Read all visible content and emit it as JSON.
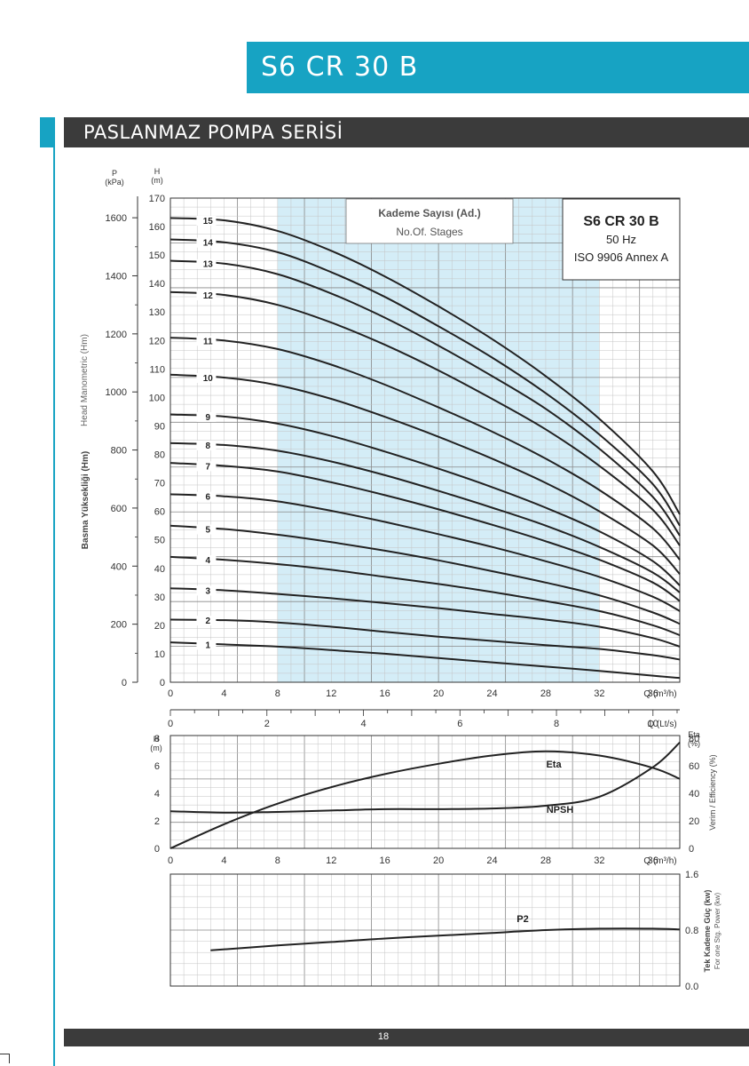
{
  "header": {
    "title": "S6 CR 30 B",
    "section": "PASLANMAZ POMPA SERİSİ"
  },
  "footer": {
    "page_number": "18"
  },
  "colors": {
    "accent": "#17a3c3",
    "dark_bar": "#3b3b3b",
    "band": "#d4edf7",
    "curve": "#222222"
  },
  "chart_data": [
    {
      "type": "line",
      "name_box": {
        "title": "S6 CR 30 B",
        "line2": "50 Hz",
        "line3": "ISO 9906 Annex A"
      },
      "legend_box": {
        "line1": "Kademe Sayısı (Ad.)",
        "line2": "No.Of. Stages"
      },
      "x_unit_label": "Q (m³/h)",
      "x_ticks": [
        0,
        4,
        8,
        12,
        16,
        20,
        24,
        28,
        32,
        36
      ],
      "x2_unit_label": "Q (Lt/s)",
      "x2_ticks": [
        0,
        2,
        4,
        6,
        8,
        10
      ],
      "y_unit": "H",
      "y_unit2": "(m)",
      "y_ticks": [
        0,
        10,
        20,
        30,
        40,
        50,
        60,
        70,
        80,
        90,
        100,
        110,
        120,
        130,
        140,
        150,
        160,
        170
      ],
      "p_unit": "P",
      "p_unit2": "(kPa)",
      "p_ticks": [
        0,
        200,
        400,
        600,
        800,
        1000,
        1200,
        1400,
        1600
      ],
      "ylabel_left1": "Head Manometric (Hm)",
      "ylabel_left2": "Basma Yüksekliği (Hm)",
      "xlim": [
        0,
        38
      ],
      "ylim": [
        0,
        170
      ],
      "highlight_range": [
        8,
        32
      ],
      "grid": true,
      "series": [
        {
          "name": "1",
          "x": [
            0,
            4,
            8,
            12,
            16,
            20,
            24,
            28,
            32,
            36,
            38
          ],
          "y": [
            14,
            13.3,
            12.5,
            11.3,
            10,
            8.5,
            7,
            5.5,
            4,
            2.3,
            1.5
          ]
        },
        {
          "name": "2",
          "x": [
            0,
            4,
            8,
            12,
            16,
            20,
            24,
            28,
            32,
            36,
            38
          ],
          "y": [
            22,
            21.8,
            21,
            19.5,
            17.7,
            16,
            14.5,
            13,
            11.7,
            9.5,
            8
          ]
        },
        {
          "name": "3",
          "x": [
            0,
            4,
            8,
            12,
            16,
            20,
            24,
            28,
            32,
            36,
            38
          ],
          "y": [
            33,
            32.3,
            31,
            29.5,
            27.8,
            26,
            24,
            22,
            19.5,
            15.5,
            12.5
          ]
        },
        {
          "name": "4",
          "x": [
            0,
            4,
            8,
            12,
            16,
            20,
            24,
            28,
            32,
            36,
            38
          ],
          "y": [
            44,
            43,
            41.5,
            39.5,
            37,
            34.5,
            31.7,
            28.5,
            25,
            20,
            16.5
          ]
        },
        {
          "name": "5",
          "x": [
            0,
            4,
            8,
            12,
            16,
            20,
            24,
            28,
            32,
            36,
            38
          ],
          "y": [
            55,
            53.8,
            51.8,
            49.2,
            46.2,
            42.8,
            39,
            35,
            30.5,
            24.5,
            20.5
          ]
        },
        {
          "name": "6",
          "x": [
            0,
            4,
            8,
            12,
            16,
            20,
            24,
            28,
            32,
            36,
            38
          ],
          "y": [
            66,
            65.3,
            63.5,
            60.2,
            56.3,
            52,
            47.5,
            42.5,
            37,
            30,
            25
          ]
        },
        {
          "name": "7",
          "x": [
            0,
            4,
            8,
            12,
            16,
            20,
            24,
            28,
            32,
            36,
            38
          ],
          "y": [
            77,
            76,
            74,
            70.2,
            65.7,
            60.7,
            55.3,
            49.5,
            43,
            35,
            28.5
          ]
        },
        {
          "name": "8",
          "x": [
            0,
            4,
            8,
            12,
            16,
            20,
            24,
            28,
            32,
            36,
            38
          ],
          "y": [
            84,
            83.3,
            81.3,
            77.5,
            72.7,
            67.2,
            61.3,
            55,
            47.5,
            38.5,
            31.5
          ]
        },
        {
          "name": "9",
          "x": [
            0,
            4,
            8,
            12,
            16,
            20,
            24,
            28,
            32,
            36,
            38
          ],
          "y": [
            94,
            93.3,
            90.8,
            86.5,
            81,
            75,
            68.5,
            61.3,
            53,
            42.5,
            34
          ]
        },
        {
          "name": "10",
          "x": [
            0,
            4,
            8,
            12,
            16,
            20,
            24,
            28,
            32,
            36,
            38
          ],
          "y": [
            108,
            107,
            104.3,
            99.5,
            93.2,
            86.2,
            78.5,
            70,
            60,
            48,
            38
          ]
        },
        {
          "name": "11",
          "x": [
            0,
            4,
            8,
            12,
            16,
            20,
            24,
            28,
            32,
            36,
            38
          ],
          "y": [
            121,
            120,
            117,
            111.5,
            104.5,
            96.5,
            88,
            78.5,
            67.5,
            54,
            43
          ]
        },
        {
          "name": "12",
          "x": [
            0,
            4,
            8,
            12,
            16,
            20,
            24,
            28,
            32,
            36,
            38
          ],
          "y": [
            137,
            136,
            132.5,
            126.3,
            118.5,
            109.5,
            99.5,
            88.8,
            76,
            60.5,
            48
          ]
        },
        {
          "name": "13",
          "x": [
            0,
            4,
            8,
            12,
            16,
            20,
            24,
            28,
            32,
            36,
            38
          ],
          "y": [
            148,
            147,
            143.3,
            136.5,
            128,
            118.2,
            107.5,
            96,
            82,
            65,
            51.5
          ]
        },
        {
          "name": "14",
          "x": [
            0,
            4,
            8,
            12,
            16,
            20,
            24,
            28,
            32,
            36,
            38
          ],
          "y": [
            155.5,
            154.5,
            151,
            144,
            135.3,
            125,
            114,
            101.5,
            87,
            69.5,
            55
          ]
        },
        {
          "name": "15",
          "x": [
            0,
            4,
            8,
            12,
            16,
            20,
            24,
            28,
            32,
            36,
            38
          ],
          "y": [
            163,
            162.2,
            158.5,
            151.5,
            142.5,
            132,
            120.5,
            107.5,
            92.5,
            74,
            59
          ]
        }
      ]
    },
    {
      "type": "line",
      "x_unit_label": "Q (m³/h)",
      "x_ticks": [
        0,
        4,
        8,
        12,
        16,
        20,
        24,
        28,
        32,
        36
      ],
      "xlim": [
        0,
        38
      ],
      "y_unit": "H",
      "y_unit2": "(m)",
      "y_ticks": [
        0,
        2,
        4,
        6,
        8
      ],
      "ylim": [
        0,
        8.2
      ],
      "y2_unit": "Eta",
      "y2_unit2": "(%)",
      "y2_ticks": [
        0,
        20,
        40,
        60,
        80
      ],
      "y2lim": [
        0,
        82
      ],
      "y2label1": "Verim / Efficiency (%)",
      "grid": true,
      "series": [
        {
          "name": "Eta",
          "axis": "right",
          "x": [
            0,
            4,
            8,
            12,
            16,
            20,
            24,
            28,
            32,
            36,
            38
          ],
          "y": [
            0,
            17.5,
            32.5,
            44.5,
            54,
            61.5,
            67.5,
            70.5,
            67.5,
            58.5,
            50.5
          ]
        },
        {
          "name": "NPSH",
          "axis": "left",
          "x": [
            0,
            4,
            8,
            12,
            16,
            20,
            24,
            28,
            32,
            36,
            38
          ],
          "y": [
            2.7,
            2.6,
            2.65,
            2.75,
            2.85,
            2.85,
            2.9,
            3.1,
            3.75,
            5.9,
            7.7
          ]
        }
      ]
    },
    {
      "type": "line",
      "xlim": [
        0,
        38
      ],
      "y2_ticks": [
        "0.0",
        "0.8",
        "1.6"
      ],
      "y2lim": [
        0,
        1.6
      ],
      "y2label1": "Tek Kademe Güç (kw)",
      "y2label2": "For one Stg. Power (kw)",
      "grid": true,
      "series": [
        {
          "name": "P2",
          "x": [
            3,
            8,
            12,
            16,
            20,
            24,
            28,
            32,
            36,
            38
          ],
          "y": [
            0.51,
            0.58,
            0.63,
            0.68,
            0.72,
            0.76,
            0.8,
            0.82,
            0.82,
            0.81
          ]
        }
      ]
    }
  ]
}
